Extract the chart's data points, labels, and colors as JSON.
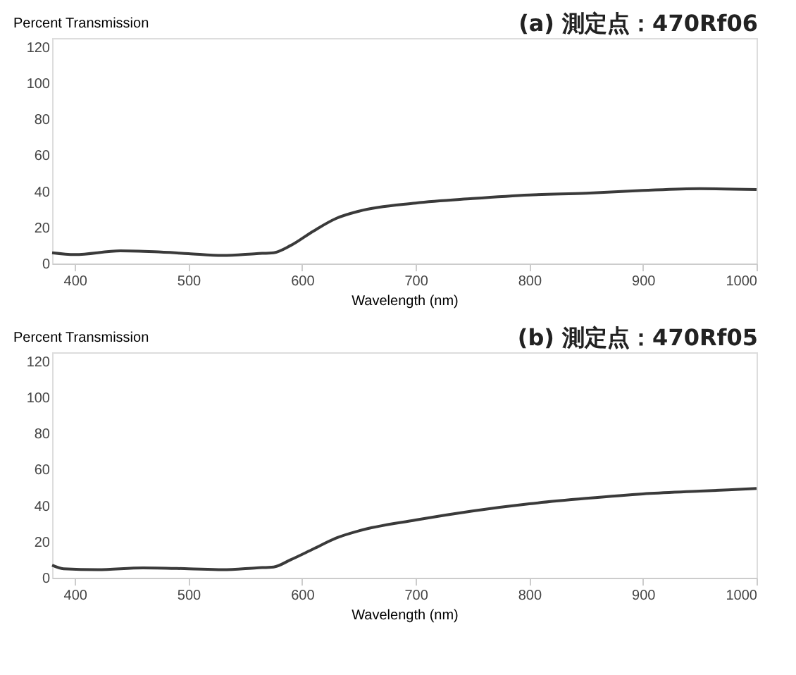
{
  "chart_data": [
    {
      "type": "line",
      "title": "(a) 測定点：470Rf06",
      "xlabel": "Wavelength (nm)",
      "ylabel": "Percent Transmission",
      "x": [
        380,
        400,
        440,
        470,
        500,
        530,
        560,
        575,
        590,
        610,
        630,
        650,
        700,
        750,
        800,
        850,
        900,
        950,
        1000
      ],
      "series": [
        {
          "color": "#3a3a3a",
          "values": [
            6,
            5,
            7,
            6.5,
            5.5,
            4.5,
            5.5,
            6,
            10,
            18,
            25,
            29,
            33.5,
            36,
            38,
            39,
            40.5,
            41.5,
            41
          ]
        }
      ],
      "xlim": [
        380,
        1000
      ],
      "xticks": [
        400,
        500,
        600,
        700,
        800,
        900,
        1000
      ],
      "ylim": [
        0,
        125
      ],
      "yticks": [
        0,
        20,
        40,
        60,
        80,
        100,
        120
      ],
      "grid": false
    },
    {
      "type": "line",
      "title": "(b) 測定点：470Rf05",
      "xlabel": "Wavelength (nm)",
      "ylabel": "Percent Transmission",
      "x": [
        380,
        390,
        420,
        460,
        500,
        530,
        560,
        575,
        590,
        610,
        630,
        650,
        700,
        750,
        800,
        850,
        900,
        950,
        1000
      ],
      "series": [
        {
          "color": "#3a3a3a",
          "values": [
            7,
            5,
            4.5,
            5.5,
            5,
            4.5,
            5.5,
            6,
            10,
            16,
            22,
            26,
            32,
            37,
            41,
            44,
            46.5,
            48,
            49.5
          ]
        }
      ],
      "xlim": [
        380,
        1000
      ],
      "xticks": [
        400,
        500,
        600,
        700,
        800,
        900,
        1000
      ],
      "ylim": [
        0,
        125
      ],
      "yticks": [
        0,
        20,
        40,
        60,
        80,
        100,
        120
      ],
      "grid": false
    }
  ]
}
